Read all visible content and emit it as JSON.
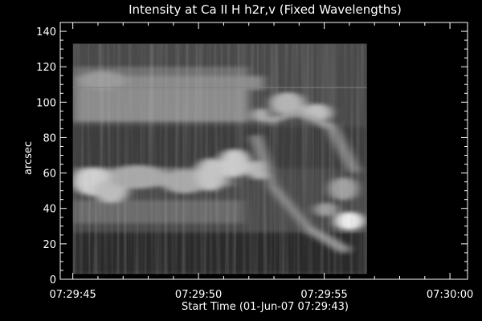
{
  "chart_data": {
    "type": "heatmap",
    "title": "Intensity at Ca II H h2r,v (Fixed Wavelengths)",
    "xlabel": "Start Time (01-Jun-07 07:29:43)",
    "ylabel": "arcsec",
    "xlim": [
      1.5,
      17.7
    ],
    "ylim": [
      0,
      145
    ],
    "x_ticks": [
      {
        "value": 2,
        "label": "07:29:45"
      },
      {
        "value": 7,
        "label": "07:29:50"
      },
      {
        "value": 12,
        "label": "07:29:55"
      },
      {
        "value": 17,
        "label": "07:30:00"
      }
    ],
    "y_ticks": [
      {
        "value": 0,
        "label": "0"
      },
      {
        "value": 20,
        "label": "20"
      },
      {
        "value": 40,
        "label": "40"
      },
      {
        "value": 60,
        "label": "60"
      },
      {
        "value": 80,
        "label": "80"
      },
      {
        "value": 100,
        "label": "100"
      },
      {
        "value": 120,
        "label": "120"
      },
      {
        "value": 140,
        "label": "140"
      }
    ],
    "x_minor_per_major": 5,
    "y_minor_per_major": 4,
    "image_extent": {
      "x": [
        2.0,
        13.7
      ],
      "y": [
        3,
        133
      ]
    },
    "colormap": "grayscale",
    "background": "#000000",
    "foreground": "#ffffff"
  }
}
